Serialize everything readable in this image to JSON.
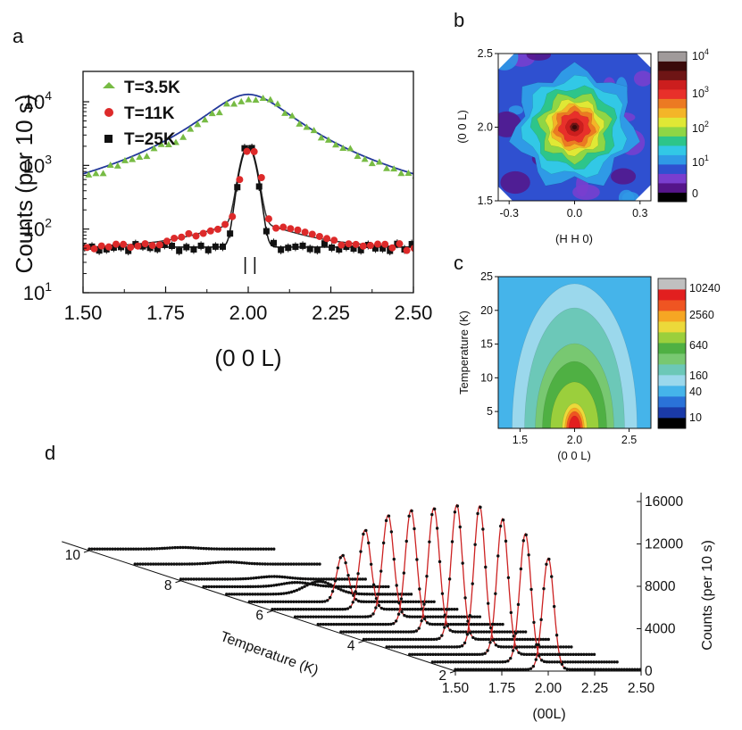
{
  "panel_labels": {
    "a": "a",
    "b": "b",
    "c": "c",
    "d": "d"
  },
  "chart_data": [
    {
      "id": "a",
      "type": "scatter",
      "yscale": "log",
      "xlabel": "(0 0 L)",
      "ylabel": "Counts (per 10 s)",
      "xlim": [
        1.5,
        2.5
      ],
      "ylim": [
        10,
        30000
      ],
      "xticks": [
        "1.50",
        "1.75",
        "2.00",
        "2.25",
        "2.50"
      ],
      "yticks": [
        {
          "value": 10,
          "base": "10",
          "exp": "1"
        },
        {
          "value": 100,
          "base": "10",
          "exp": "2"
        },
        {
          "value": 1000,
          "base": "10",
          "exp": "3"
        },
        {
          "value": 10000,
          "base": "10",
          "exp": "4"
        }
      ],
      "series": [
        {
          "name": "T=3.5K",
          "marker": "triangle",
          "color": "#77bb44",
          "fit_color": "#23389a",
          "peak": 13000,
          "width": 0.12,
          "background": 30
        },
        {
          "name": "T=11K",
          "marker": "circle",
          "color": "#dd2a2a",
          "fit_color": "#333333",
          "peak": 1900,
          "width": 0.02,
          "lor_amp": 80,
          "lor_width": 0.15,
          "background": 45
        },
        {
          "name": "T=25K",
          "marker": "square",
          "color": "#111111",
          "fit_color": "#111111",
          "peak": 1850,
          "width": 0.02,
          "background": 52
        }
      ],
      "annotation": "| |"
    },
    {
      "id": "b",
      "type": "heatmap",
      "xlabel": "(H H 0)",
      "ylabel": "(0 0 L)",
      "xlim": [
        -0.35,
        0.35
      ],
      "ylim": [
        1.5,
        2.5
      ],
      "xticks": [
        "-0.3",
        "0.0",
        "0.3"
      ],
      "yticks": [
        "1.5",
        "2.0",
        "2.5"
      ],
      "colorbar_labels": [
        {
          "base": "10",
          "exp": "4"
        },
        {
          "base": "10",
          "exp": "3"
        },
        {
          "base": "10",
          "exp": "2"
        },
        {
          "base": "10",
          "exp": "1"
        },
        {
          "base": "0",
          "exp": ""
        }
      ],
      "colors": [
        "#000000",
        "#55158a",
        "#7a3ecf",
        "#2f50d0",
        "#2f9ae6",
        "#32c8e6",
        "#2dc58a",
        "#8fd645",
        "#e0e835",
        "#f4b528",
        "#ec7a22",
        "#e8302a",
        "#cc1e1e",
        "#6e1515",
        "#3a0a0a",
        "#a09a9a"
      ]
    },
    {
      "id": "c",
      "type": "heatmap",
      "xlabel": "(0 0 L)",
      "ylabel": "Temperature (K)",
      "xlim": [
        1.3,
        2.7
      ],
      "ylim": [
        2.5,
        25
      ],
      "xticks": [
        "1.5",
        "2.0",
        "2.5"
      ],
      "yticks": [
        "5",
        "10",
        "15",
        "20",
        "25"
      ],
      "colorbar_labels": [
        "10240",
        "2560",
        "640",
        "160",
        "40",
        "10"
      ],
      "colors": [
        "#000000",
        "#1a3aa8",
        "#2a72d8",
        "#45b4ea",
        "#9bd8ec",
        "#6cc8b8",
        "#78c871",
        "#4fb043",
        "#9bcf3c",
        "#ecd93a",
        "#f6a623",
        "#ef5522",
        "#e21f1f",
        "#c0c0c0"
      ]
    },
    {
      "id": "d",
      "type": "line",
      "xlabel": "(00L)",
      "ylabel": "Counts (per 10 s)",
      "depth_label": "Temperature (K)",
      "xticks": [
        "1.50",
        "1.75",
        "2.00",
        "2.25",
        "2.50"
      ],
      "yticks": [
        "0",
        "4000",
        "8000",
        "12000",
        "16000"
      ],
      "depth_ticks": [
        "2",
        "4",
        "6",
        "8",
        "10"
      ],
      "temperatures": [
        2,
        2.5,
        3,
        3.5,
        4,
        4.5,
        5,
        5.5,
        6,
        6.5,
        7,
        7.5,
        8,
        9,
        10
      ],
      "peak_heights": [
        10500,
        12100,
        12800,
        13300,
        12700,
        11700,
        10800,
        9600,
        7500,
        4400,
        1200,
        400,
        250,
        200,
        150
      ],
      "peak_center": 2.0,
      "ylim": [
        0,
        16000
      ],
      "xlim": [
        1.5,
        2.5
      ],
      "fit_color": "#cc2222",
      "point_color": "#111111"
    }
  ]
}
